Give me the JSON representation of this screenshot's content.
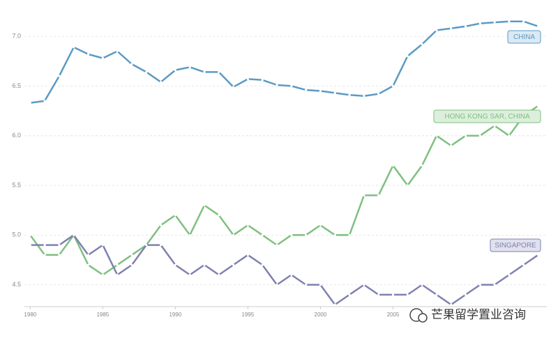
{
  "chart_data": {
    "type": "line",
    "x": [
      1980,
      1981,
      1982,
      1983,
      1984,
      1985,
      1986,
      1987,
      1988,
      1989,
      1990,
      1991,
      1992,
      1993,
      1994,
      1995,
      1996,
      1997,
      1998,
      1999,
      2000,
      2001,
      2002,
      2003,
      2004,
      2005,
      2006,
      2007,
      2008,
      2009,
      2010,
      2011,
      2012,
      2013,
      2014,
      2015
    ],
    "series": [
      {
        "name": "CHINA",
        "color": "#5b9ac4",
        "values": [
          6.33,
          6.35,
          6.6,
          6.89,
          6.82,
          6.78,
          6.85,
          6.72,
          6.64,
          6.54,
          6.66,
          6.69,
          6.64,
          6.64,
          6.49,
          6.57,
          6.56,
          6.51,
          6.5,
          6.46,
          6.45,
          6.43,
          6.41,
          6.4,
          6.42,
          6.5,
          6.8,
          6.92,
          7.06,
          7.08,
          7.1,
          7.13,
          7.14,
          7.15,
          7.15,
          7.1
        ]
      },
      {
        "name": "HONG KONG SAR, CHINA",
        "color": "#7fbf7f",
        "values": [
          5.0,
          4.8,
          4.8,
          5.0,
          4.7,
          4.6,
          4.7,
          4.8,
          4.9,
          5.1,
          5.2,
          5.0,
          5.3,
          5.2,
          5.0,
          5.1,
          5.0,
          4.9,
          5.0,
          5.0,
          5.1,
          5.0,
          5.0,
          5.4,
          5.4,
          5.7,
          5.5,
          5.7,
          6.0,
          5.9,
          6.0,
          6.0,
          6.1,
          6.0,
          6.2,
          6.3
        ]
      },
      {
        "name": "SINGAPORE",
        "color": "#7f80b0",
        "values": [
          4.9,
          4.9,
          4.9,
          5.0,
          4.8,
          4.9,
          4.6,
          4.7,
          4.9,
          4.9,
          4.7,
          4.6,
          4.7,
          4.6,
          4.7,
          4.8,
          4.7,
          4.5,
          4.6,
          4.5,
          4.5,
          4.3,
          4.4,
          4.5,
          4.4,
          4.4,
          4.4,
          4.5,
          4.4,
          4.3,
          4.4,
          4.5,
          4.5,
          4.6,
          4.7,
          4.8
        ]
      }
    ],
    "xlim": [
      1979.6,
      2015.6
    ],
    "xticks": [
      1980,
      1985,
      1990,
      1995,
      2000,
      2005
    ],
    "ylim": [
      4.28,
      7.19
    ],
    "yticks": [
      {
        "value": 4.5,
        "label": "4.5"
      },
      {
        "value": 5.0,
        "label": "5.0"
      },
      {
        "value": 5.5,
        "label": "5.5"
      },
      {
        "value": 6.0,
        "label": "6.0"
      },
      {
        "value": 6.5,
        "label": "6.5"
      },
      {
        "value": 7.0,
        "label": "7.0"
      }
    ],
    "grid": true,
    "watermark": "芒果留学置业咨询"
  }
}
